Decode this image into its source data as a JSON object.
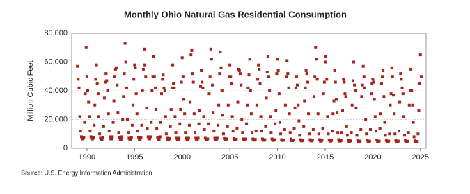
{
  "chart_data": {
    "type": "scatter",
    "title": "Monthly Ohio Natural Gas Residential Consumption",
    "y_label": "Million Cubic Feet",
    "source": "Source: U.S. Energy Information Administration",
    "color": "#a3241a",
    "grid": true,
    "xlim": [
      1988.4,
      2025.6
    ],
    "xticks": [
      1990,
      1995,
      2000,
      2005,
      2010,
      2015,
      2020,
      2025
    ],
    "ylim": [
      0,
      80000
    ],
    "yticks": [
      0,
      {
        "value": 20000,
        "label": "20,000"
      },
      {
        "value": 40000,
        "label": "40,000"
      },
      {
        "value": 60000,
        "label": "60,000"
      },
      {
        "value": 80000,
        "label": "80,000"
      }
    ],
    "x": [
      1989,
      1989.08,
      1989.17,
      1989.25,
      1989.33,
      1989.42,
      1989.5,
      1989.58,
      1989.67,
      1989.75,
      1989.83,
      1989.92,
      1990,
      1990.08,
      1990.17,
      1990.25,
      1990.33,
      1990.42,
      1990.5,
      1990.58,
      1990.67,
      1990.75,
      1990.83,
      1990.92,
      1991,
      1991.08,
      1991.17,
      1991.25,
      1991.33,
      1991.42,
      1991.5,
      1991.58,
      1991.67,
      1991.75,
      1991.83,
      1991.92,
      1992,
      1992.08,
      1992.17,
      1992.25,
      1992.33,
      1992.42,
      1992.5,
      1992.58,
      1992.67,
      1992.75,
      1992.83,
      1992.92,
      1993,
      1993.08,
      1993.17,
      1993.25,
      1993.33,
      1993.42,
      1993.5,
      1993.58,
      1993.67,
      1993.75,
      1993.83,
      1993.92,
      1994,
      1994.08,
      1994.17,
      1994.25,
      1994.33,
      1994.42,
      1994.5,
      1994.58,
      1994.67,
      1994.75,
      1994.83,
      1994.92,
      1995,
      1995.08,
      1995.17,
      1995.25,
      1995.33,
      1995.42,
      1995.5,
      1995.58,
      1995.67,
      1995.75,
      1995.83,
      1995.92,
      1996,
      1996.08,
      1996.17,
      1996.25,
      1996.33,
      1996.42,
      1996.5,
      1996.58,
      1996.67,
      1996.75,
      1996.83,
      1996.92,
      1997,
      1997.08,
      1997.17,
      1997.25,
      1997.33,
      1997.42,
      1997.5,
      1997.58,
      1997.67,
      1997.75,
      1997.83,
      1997.92,
      1998,
      1998.08,
      1998.17,
      1998.25,
      1998.33,
      1998.42,
      1998.5,
      1998.58,
      1998.67,
      1998.75,
      1998.83,
      1998.92,
      1999,
      1999.08,
      1999.17,
      1999.25,
      1999.33,
      1999.42,
      1999.5,
      1999.58,
      1999.67,
      1999.75,
      1999.83,
      1999.92,
      2000,
      2000.08,
      2000.17,
      2000.25,
      2000.33,
      2000.42,
      2000.5,
      2000.58,
      2000.67,
      2000.75,
      2000.83,
      2000.92,
      2001,
      2001.08,
      2001.17,
      2001.25,
      2001.33,
      2001.42,
      2001.5,
      2001.58,
      2001.67,
      2001.75,
      2001.83,
      2001.92,
      2002,
      2002.08,
      2002.17,
      2002.25,
      2002.33,
      2002.42,
      2002.5,
      2002.58,
      2002.67,
      2002.75,
      2002.83,
      2002.92,
      2003,
      2003.08,
      2003.17,
      2003.25,
      2003.33,
      2003.42,
      2003.5,
      2003.58,
      2003.67,
      2003.75,
      2003.83,
      2003.92,
      2004,
      2004.08,
      2004.17,
      2004.25,
      2004.33,
      2004.42,
      2004.5,
      2004.58,
      2004.67,
      2004.75,
      2004.83,
      2004.92,
      2005,
      2005.08,
      2005.17,
      2005.25,
      2005.33,
      2005.42,
      2005.5,
      2005.58,
      2005.67,
      2005.75,
      2005.83,
      2005.92,
      2006,
      2006.08,
      2006.17,
      2006.25,
      2006.33,
      2006.42,
      2006.5,
      2006.58,
      2006.67,
      2006.75,
      2006.83,
      2006.92,
      2007,
      2007.08,
      2007.17,
      2007.25,
      2007.33,
      2007.42,
      2007.5,
      2007.58,
      2007.67,
      2007.75,
      2007.83,
      2007.92,
      2008,
      2008.08,
      2008.17,
      2008.25,
      2008.33,
      2008.42,
      2008.5,
      2008.58,
      2008.67,
      2008.75,
      2008.83,
      2008.92,
      2009,
      2009.08,
      2009.17,
      2009.25,
      2009.33,
      2009.42,
      2009.5,
      2009.58,
      2009.67,
      2009.75,
      2009.83,
      2009.92,
      2010,
      2010.08,
      2010.17,
      2010.25,
      2010.33,
      2010.42,
      2010.5,
      2010.58,
      2010.67,
      2010.75,
      2010.83,
      2010.92,
      2011,
      2011.08,
      2011.17,
      2011.25,
      2011.33,
      2011.42,
      2011.5,
      2011.58,
      2011.67,
      2011.75,
      2011.83,
      2011.92,
      2012,
      2012.08,
      2012.17,
      2012.25,
      2012.33,
      2012.42,
      2012.5,
      2012.58,
      2012.67,
      2012.75,
      2012.83,
      2012.92,
      2013,
      2013.08,
      2013.17,
      2013.25,
      2013.33,
      2013.42,
      2013.5,
      2013.58,
      2013.67,
      2013.75,
      2013.83,
      2013.92,
      2014,
      2014.08,
      2014.17,
      2014.25,
      2014.33,
      2014.42,
      2014.5,
      2014.58,
      2014.67,
      2014.75,
      2014.83,
      2014.92,
      2015,
      2015.08,
      2015.17,
      2015.25,
      2015.33,
      2015.42,
      2015.5,
      2015.58,
      2015.67,
      2015.75,
      2015.83,
      2015.92,
      2016,
      2016.08,
      2016.17,
      2016.25,
      2016.33,
      2016.42,
      2016.5,
      2016.58,
      2016.67,
      2016.75,
      2016.83,
      2016.92,
      2017,
      2017.08,
      2017.17,
      2017.25,
      2017.33,
      2017.42,
      2017.5,
      2017.58,
      2017.67,
      2017.75,
      2017.83,
      2017.92,
      2018,
      2018.08,
      2018.17,
      2018.25,
      2018.33,
      2018.42,
      2018.5,
      2018.58,
      2018.67,
      2018.75,
      2018.83,
      2018.92,
      2019,
      2019.08,
      2019.17,
      2019.25,
      2019.33,
      2019.42,
      2019.5,
      2019.58,
      2019.67,
      2019.75,
      2019.83,
      2019.92,
      2020,
      2020.08,
      2020.17,
      2020.25,
      2020.33,
      2020.42,
      2020.5,
      2020.58,
      2020.67,
      2020.75,
      2020.83,
      2020.92,
      2021,
      2021.08,
      2021.17,
      2021.25,
      2021.33,
      2021.42,
      2021.5,
      2021.58,
      2021.67,
      2021.75,
      2021.83,
      2021.92,
      2022,
      2022.08,
      2022.17,
      2022.25,
      2022.33,
      2022.42,
      2022.5,
      2022.58,
      2022.67,
      2022.75,
      2022.83,
      2022.92,
      2023,
      2023.08,
      2023.17,
      2023.25,
      2023.33,
      2023.42,
      2023.5,
      2023.58,
      2023.67,
      2023.75,
      2023.83,
      2023.92,
      2024,
      2024.08,
      2024.17,
      2024.25,
      2024.33,
      2024.42,
      2024.5,
      2024.58,
      2024.67,
      2024.75,
      2024.83,
      2024.92,
      2025,
      2025.08
    ],
    "values": [
      57000,
      48000,
      42000,
      22000,
      12000,
      8000,
      6500,
      6500,
      7500,
      18000,
      38000,
      70000,
      50000,
      40000,
      32000,
      22000,
      12000,
      8000,
      6500,
      6500,
      7500,
      16000,
      30000,
      48000,
      58000,
      45000,
      38000,
      22000,
      10000,
      7000,
      6000,
      6200,
      7500,
      15000,
      35000,
      46000,
      52000,
      47000,
      40000,
      24000,
      12000,
      8000,
      6500,
      6500,
      8000,
      18000,
      33000,
      50000,
      55000,
      56000,
      44000,
      25000,
      11000,
      7500,
      6200,
      6300,
      8000,
      20000,
      36000,
      52000,
      73000,
      60000,
      42000,
      20000,
      11000,
      7000,
      6200,
      6300,
      7500,
      16000,
      30000,
      48000,
      58000,
      56000,
      38000,
      24000,
      12000,
      7500,
      6000,
      6200,
      7500,
      16000,
      40000,
      55000,
      69000,
      58000,
      50000,
      28000,
      14000,
      8000,
      6500,
      6500,
      8000,
      18000,
      40000,
      50000,
      64000,
      50000,
      42000,
      27000,
      14000,
      7500,
      6200,
      6300,
      8000,
      18000,
      38000,
      48000,
      51000,
      42000,
      40000,
      22000,
      10000,
      7000,
      6000,
      6000,
      6800,
      15000,
      27000,
      42000,
      58000,
      45000,
      42000,
      22000,
      11000,
      7000,
      6000,
      6200,
      7000,
      17000,
      27000,
      46000,
      63000,
      50000,
      34000,
      24000,
      11000,
      7000,
      6000,
      6100,
      7000,
      16000,
      32000,
      65000,
      68000,
      52000,
      46000,
      24000,
      11000,
      7000,
      6000,
      6000,
      7000,
      17000,
      26000,
      43000,
      54000,
      46000,
      42000,
      22000,
      13000,
      7000,
      6000,
      5800,
      6500,
      17000,
      38000,
      50000,
      69000,
      62000,
      44000,
      25000,
      12000,
      7000,
      6000,
      6000,
      7000,
      16000,
      30000,
      52000,
      67000,
      56000,
      40000,
      23000,
      10000,
      6800,
      5800,
      5900,
      6500,
      15000,
      30000,
      50000,
      58000,
      50000,
      45000,
      22000,
      12000,
      6800,
      5800,
      5800,
      6300,
      14000,
      32000,
      55000,
      54000,
      52000,
      44000,
      20000,
      11000,
      6500,
      5800,
      5800,
      6500,
      17000,
      30000,
      42000,
      51000,
      62000,
      40000,
      24000,
      11000,
      6500,
      5700,
      5700,
      6200,
      12000,
      30000,
      48000,
      58000,
      55000,
      45000,
      22000,
      12000,
      6500,
      5600,
      5600,
      6000,
      15000,
      35000,
      53000,
      64000,
      50000,
      40000,
      22000,
      11000,
      6500,
      5500,
      5500,
      6000,
      17000,
      26000,
      52000,
      62000,
      54000,
      38000,
      18000,
      10000,
      6000,
      5500,
      5500,
      5800,
      13000,
      30000,
      50000,
      61000,
      52000,
      42000,
      24000,
      11000,
      6500,
      5300,
      5300,
      5800,
      14000,
      28000,
      42000,
      50000,
      44000,
      30000,
      19000,
      9000,
      6000,
      5200,
      5200,
      5600,
      15000,
      33000,
      42000,
      54000,
      52000,
      46000,
      24000,
      10000,
      6000,
      5200,
      5200,
      5600,
      13000,
      36000,
      50000,
      70000,
      62000,
      48000,
      24000,
      10000,
      6000,
      5000,
      5000,
      5600,
      14000,
      38000,
      46000,
      60000,
      64000,
      48000,
      22000,
      10000,
      5800,
      5000,
      5000,
      5500,
      12000,
      24000,
      33000,
      54000,
      46000,
      34000,
      25000,
      11000,
      6000,
      5000,
      5000,
      5300,
      11000,
      26000,
      48000,
      46000,
      38000,
      36000,
      15000,
      9000,
      5800,
      4900,
      4900,
      5200,
      11000,
      30000,
      47000,
      60000,
      44000,
      40000,
      28000,
      9000,
      5600,
      4800,
      4800,
      5000,
      13000,
      36000,
      44000,
      57000,
      50000,
      42000,
      20000,
      10000,
      5800,
      4800,
      4800,
      5000,
      13000,
      38000,
      45000,
      48000,
      46000,
      34000,
      22000,
      12000,
      5800,
      4800,
      4800,
      5000,
      14000,
      24000,
      45000,
      50000,
      54000,
      36000,
      18000,
      9000,
      5500,
      4700,
      4700,
      5000,
      10000,
      30000,
      38000,
      56000,
      50000,
      37000,
      24000,
      10000,
      5500,
      4600,
      4600,
      5000,
      12000,
      32000,
      52000,
      48000,
      42000,
      38000,
      22000,
      9000,
      5400,
      4600,
      4600,
      4900,
      11000,
      30000,
      40000,
      55000,
      40000,
      30000,
      18000,
      8000,
      5200,
      4500,
      4500,
      4800,
      10000,
      26000,
      45000,
      65000,
      50000
    ]
  }
}
